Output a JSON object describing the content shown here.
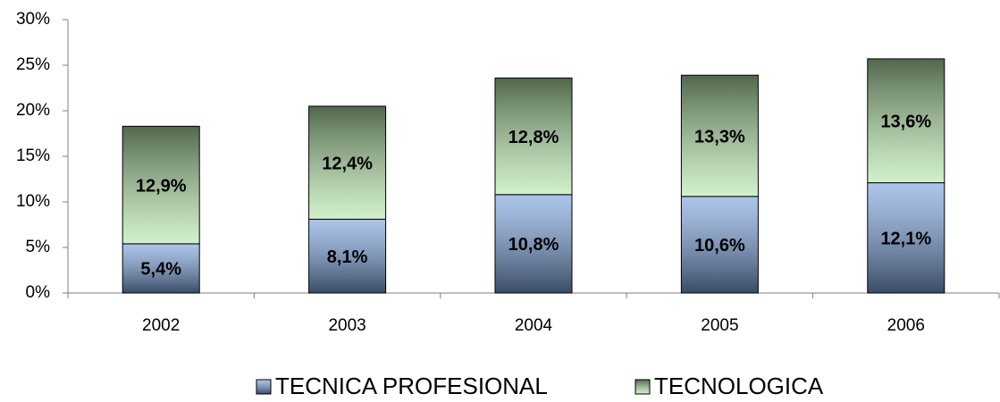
{
  "chart_data": {
    "type": "bar",
    "stacked": true,
    "categories": [
      "2002",
      "2003",
      "2004",
      "2005",
      "2006"
    ],
    "series": [
      {
        "name": "TECNICA PROFESIONAL",
        "color": "#7fa6e0",
        "values": [
          5.4,
          8.1,
          10.8,
          10.6,
          12.1
        ],
        "value_labels": [
          "5,4%",
          "8,1%",
          "10,8%",
          "10,6%",
          "12,1%"
        ]
      },
      {
        "name": "TECNOLOGICA",
        "color": "#b4e6aa",
        "values": [
          12.9,
          12.4,
          12.8,
          13.3,
          13.6
        ],
        "value_labels": [
          "12,9%",
          "12,4%",
          "12,8%",
          "13,3%",
          "13,6%"
        ]
      }
    ],
    "ylim": [
      0,
      30
    ],
    "yticks": [
      {
        "value": 0,
        "label": "0%"
      },
      {
        "value": 5,
        "label": "5%"
      },
      {
        "value": 10,
        "label": "10%"
      },
      {
        "value": 15,
        "label": "15%"
      },
      {
        "value": 20,
        "label": "20%"
      },
      {
        "value": 25,
        "label": "25%"
      },
      {
        "value": 30,
        "label": "30%"
      }
    ],
    "grid": false,
    "legend": "bottom"
  }
}
